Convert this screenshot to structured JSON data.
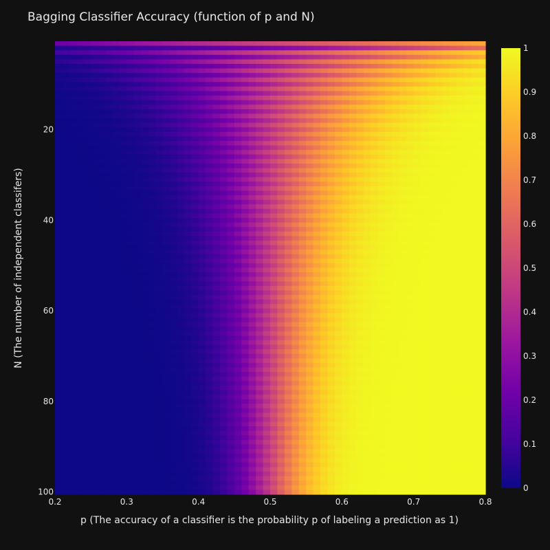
{
  "page": {
    "background": "#111111"
  },
  "chart_data": {
    "type": "heatmap",
    "title": "Bagging Classifier Accuracy (function of p and N)",
    "xlabel": "p (The accuracy of a classifier is the probability p of labeling a prediction as 1)",
    "ylabel": "N (The number of independent classifers)",
    "x_range": [
      0.2,
      0.8
    ],
    "y_range": [
      1,
      100
    ],
    "y_reversed": true,
    "x_ticks": [
      {
        "value": 0.2,
        "label": "0.2"
      },
      {
        "value": 0.3,
        "label": "0.3"
      },
      {
        "value": 0.4,
        "label": "0.4"
      },
      {
        "value": 0.5,
        "label": "0.5"
      },
      {
        "value": 0.6,
        "label": "0.6"
      },
      {
        "value": 0.7,
        "label": "0.7"
      },
      {
        "value": 0.8,
        "label": "0.8"
      }
    ],
    "y_ticks": [
      {
        "value": 20,
        "label": "20"
      },
      {
        "value": 40,
        "label": "40"
      },
      {
        "value": 60,
        "label": "60"
      },
      {
        "value": 80,
        "label": "80"
      },
      {
        "value": 100,
        "label": "100"
      }
    ],
    "z_formula": "P(more than N/2 of N independent classifiers label 1), each with probability p",
    "x_step": 0.01,
    "colorscale_name": "Plasma",
    "colorscale": [
      "#0d0887",
      "#46039f",
      "#7201a8",
      "#9c179e",
      "#bd3786",
      "#d8576b",
      "#ed7953",
      "#fb9f3a",
      "#fdca26",
      "#f0f921"
    ],
    "colorbar": {
      "range": [
        0,
        1
      ],
      "ticks": [
        {
          "value": 0,
          "label": "0"
        },
        {
          "value": 0.1,
          "label": "0.1"
        },
        {
          "value": 0.2,
          "label": "0.2"
        },
        {
          "value": 0.3,
          "label": "0.3"
        },
        {
          "value": 0.4,
          "label": "0.4"
        },
        {
          "value": 0.5,
          "label": "0.5"
        },
        {
          "value": 0.6,
          "label": "0.6"
        },
        {
          "value": 0.7,
          "label": "0.7"
        },
        {
          "value": 0.8,
          "label": "0.8"
        },
        {
          "value": 0.9,
          "label": "0.9"
        },
        {
          "value": 1,
          "label": "1"
        }
      ]
    }
  }
}
